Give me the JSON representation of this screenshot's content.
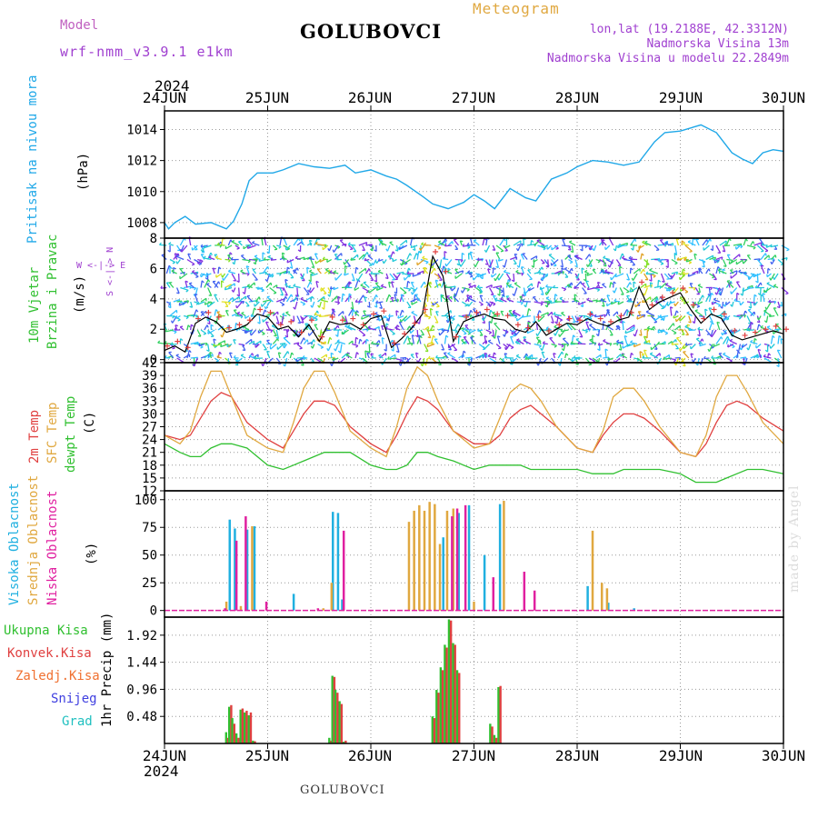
{
  "header": {
    "model_label": "Model",
    "model": "wrf-nmm_v3.9.1 e1km",
    "station": "GOLUBOVCI",
    "subtitle": "Meteogram",
    "lonlat": "lon,lat (19.2188E, 42.3312N)",
    "elevation": "Nadmorska Visina 13m",
    "elevation_model": "Nadmorska Visina u modelu 22.2849m"
  },
  "year": "2024",
  "days": [
    "24JUN",
    "25JUN",
    "26JUN",
    "27JUN",
    "28JUN",
    "29JUN",
    "30JUN"
  ],
  "footer_station": "GOLUBOVCI",
  "credit": "made by Angel",
  "colors": {
    "pressure": "#20a8e8",
    "wind_label": "#30c030",
    "temp": "#e04040",
    "sfc": "#e0a840",
    "dew": "#30c030",
    "high": "#20b0e0",
    "mid": "#e0a840",
    "low": "#e020a0"
  },
  "chart_data": [
    {
      "type": "line",
      "panel": "pressure",
      "ylabel_lines": [
        "Pritisak na nivou mora",
        "(hPa)"
      ],
      "ylim": [
        1007,
        1015.2
      ],
      "yticks": [
        "1008",
        "1010",
        "1012",
        "1014"
      ],
      "series": [
        {
          "name": "Pritisak na nivou mora",
          "color": "#20a8e8",
          "x": [
            0,
            0.04,
            0.1,
            0.2,
            0.3,
            0.45,
            0.6,
            0.67,
            0.75,
            0.82,
            0.9,
            0.97,
            1.05,
            1.15,
            1.3,
            1.45,
            1.6,
            1.75,
            1.85,
            2.0,
            2.15,
            2.25,
            2.35,
            2.5,
            2.6,
            2.75,
            2.9,
            3.0,
            3.1,
            3.2,
            3.35,
            3.5,
            3.6,
            3.75,
            3.9,
            4.0,
            4.15,
            4.3,
            4.45,
            4.6,
            4.75,
            4.85,
            5.0,
            5.1,
            5.2,
            5.35,
            5.5,
            5.6,
            5.7,
            5.8,
            5.9,
            6.0
          ],
          "y": [
            1008.0,
            1007.6,
            1008.0,
            1008.4,
            1007.9,
            1008.0,
            1007.6,
            1008.1,
            1009.2,
            1010.7,
            1011.2,
            1011.2,
            1011.2,
            1011.4,
            1011.8,
            1011.6,
            1011.5,
            1011.7,
            1011.2,
            1011.4,
            1011.0,
            1010.8,
            1010.4,
            1009.7,
            1009.2,
            1008.9,
            1009.3,
            1009.8,
            1009.4,
            1008.9,
            1010.2,
            1009.6,
            1009.4,
            1010.8,
            1011.2,
            1011.6,
            1012.0,
            1011.9,
            1011.7,
            1011.9,
            1013.2,
            1013.8,
            1013.9,
            1014.1,
            1014.3,
            1013.8,
            1012.5,
            1012.1,
            1011.8,
            1012.5,
            1012.7,
            1012.6
          ]
        }
      ]
    },
    {
      "type": "line",
      "panel": "wind",
      "ylabel_lines": [
        "10m Vjetar",
        "Brzina i Pravac",
        "(m/s)"
      ],
      "compass": "W <-|-> E",
      "compass_ns": "S <-|-> N",
      "ylim": [
        -0.2,
        8
      ],
      "yticks": [
        "0",
        "2",
        "4",
        "6",
        "8"
      ],
      "series": [
        {
          "name": "10m Vjetar",
          "color": "#000000",
          "x": [
            0,
            0.1,
            0.2,
            0.3,
            0.4,
            0.5,
            0.6,
            0.7,
            0.8,
            0.9,
            1.0,
            1.1,
            1.2,
            1.3,
            1.4,
            1.5,
            1.6,
            1.7,
            1.8,
            1.9,
            2.0,
            2.1,
            2.2,
            2.3,
            2.4,
            2.5,
            2.6,
            2.7,
            2.8,
            2.9,
            3.0,
            3.1,
            3.2,
            3.3,
            3.4,
            3.5,
            3.6,
            3.7,
            3.8,
            3.9,
            4.0,
            4.1,
            4.2,
            4.3,
            4.4,
            4.5,
            4.6,
            4.7,
            4.8,
            4.9,
            5.0,
            5.1,
            5.2,
            5.3,
            5.4,
            5.5,
            5.6,
            5.7,
            5.8,
            5.9,
            6.0
          ],
          "y": [
            0.6,
            0.9,
            0.5,
            2.4,
            2.8,
            2.5,
            1.8,
            2.0,
            2.3,
            3.0,
            2.8,
            2.0,
            2.2,
            1.5,
            2.3,
            1.2,
            2.5,
            2.3,
            2.4,
            2.0,
            2.7,
            2.9,
            0.8,
            1.4,
            2.1,
            3.0,
            6.8,
            5.5,
            1.2,
            2.5,
            2.8,
            3.0,
            2.7,
            2.6,
            2.0,
            1.8,
            2.5,
            1.6,
            2.0,
            2.4,
            2.3,
            2.7,
            2.4,
            2.2,
            2.6,
            2.8,
            4.8,
            3.3,
            3.8,
            4.1,
            4.4,
            3.3,
            2.4,
            3.0,
            2.7,
            1.6,
            1.3,
            1.5,
            1.7,
            1.9,
            1.7
          ]
        }
      ]
    },
    {
      "type": "line",
      "panel": "temperature",
      "ylabel_lines": [
        "2m Temp",
        "SFC Temp",
        "dewpt Temp",
        "(C)"
      ],
      "ylim": [
        12,
        42
      ],
      "yticks": [
        "12",
        "15",
        "18",
        "21",
        "24",
        "27",
        "30",
        "33",
        "36",
        "39",
        "42"
      ],
      "x": [
        0,
        0.15,
        0.25,
        0.35,
        0.45,
        0.55,
        0.65,
        0.8,
        1.0,
        1.15,
        1.25,
        1.35,
        1.45,
        1.55,
        1.65,
        1.8,
        2.0,
        2.15,
        2.25,
        2.35,
        2.45,
        2.55,
        2.65,
        2.8,
        3.0,
        3.15,
        3.25,
        3.35,
        3.45,
        3.55,
        3.65,
        3.8,
        4.0,
        4.15,
        4.25,
        4.35,
        4.45,
        4.55,
        4.65,
        4.8,
        5.0,
        5.15,
        5.25,
        5.35,
        5.45,
        5.55,
        5.65,
        5.8,
        6.0
      ],
      "series": [
        {
          "name": "2m Temp",
          "color": "#e04040",
          "values": [
            25,
            24,
            25,
            29,
            33,
            35,
            34,
            28,
            24,
            22,
            26,
            30,
            33,
            33,
            32,
            27,
            23,
            21,
            25,
            30,
            34,
            33,
            31,
            26,
            23,
            23,
            25,
            29,
            31,
            32,
            30,
            27,
            22,
            21,
            25,
            28,
            30,
            30,
            29,
            26,
            21,
            20,
            23,
            28,
            32,
            33,
            32,
            29,
            26
          ]
        },
        {
          "name": "SFC Temp",
          "color": "#e0a840",
          "values": [
            25,
            23,
            26,
            34,
            40,
            40,
            34,
            25,
            22,
            21,
            28,
            36,
            40,
            40,
            35,
            26,
            22,
            20,
            27,
            36,
            41,
            39,
            33,
            26,
            22,
            23,
            29,
            35,
            37,
            36,
            33,
            27,
            22,
            21,
            26,
            34,
            36,
            36,
            33,
            27,
            21,
            20,
            25,
            34,
            39,
            39,
            35,
            28,
            23
          ]
        },
        {
          "name": "dewpt Temp",
          "color": "#30c030",
          "values": [
            23,
            21,
            20,
            20,
            22,
            23,
            23,
            22,
            18,
            17,
            18,
            19,
            20,
            21,
            21,
            21,
            18,
            17,
            17,
            18,
            21,
            21,
            20,
            19,
            17,
            18,
            18,
            18,
            18,
            17,
            17,
            17,
            17,
            16,
            16,
            16,
            17,
            17,
            17,
            17,
            16,
            14,
            14,
            14,
            15,
            16,
            17,
            17,
            16
          ]
        }
      ]
    },
    {
      "type": "bar",
      "panel": "cloud",
      "ylabel_lines": [
        "Visoka Oblacnost",
        "Srednja Oblacnost",
        "Niska Oblacnost",
        "(%)"
      ],
      "ylim": [
        -6,
        108
      ],
      "yticks": [
        "0",
        "25",
        "50",
        "75",
        "100"
      ],
      "series": [
        {
          "name": "Visoka Oblacnost",
          "color": "#20b0e0",
          "x": [
            0.63,
            0.68,
            0.8,
            0.87,
            1.25,
            1.63,
            1.68,
            1.72,
            2.7,
            2.85,
            2.95,
            3.1,
            3.25,
            4.1,
            4.3,
            4.55
          ],
          "values": [
            82,
            74,
            73,
            76,
            15,
            89,
            88,
            10,
            66,
            88,
            95,
            50,
            96,
            22,
            7,
            2
          ]
        },
        {
          "name": "Srednja Oblacnost",
          "color": "#e0a840",
          "x": [
            0.58,
            0.72,
            0.83,
            1.52,
            1.6,
            2.35,
            2.4,
            2.45,
            2.5,
            2.55,
            2.6,
            2.65,
            2.72,
            2.78,
            2.98,
            3.27,
            4.13,
            4.22,
            4.27
          ],
          "values": [
            8,
            4,
            76,
            2,
            25,
            80,
            90,
            95,
            90,
            98,
            96,
            60,
            90,
            92,
            8,
            99,
            72,
            25,
            20
          ]
        },
        {
          "name": "Niska Oblacnost",
          "color": "#e020a0",
          "x": [
            0.55,
            0.66,
            0.75,
            0.95,
            1.45,
            1.7,
            2.75,
            2.8,
            2.88,
            3.15,
            3.45,
            3.55
          ],
          "values": [
            2,
            63,
            85,
            8,
            2,
            72,
            85,
            92,
            95,
            30,
            35,
            18
          ]
        }
      ]
    },
    {
      "type": "bar",
      "panel": "precipitation",
      "ylabel_lines": [
        "1hr Precip (mm)"
      ],
      "legend": [
        "Ukupna Kisa",
        "Konvek.Kisa",
        "Zaledj.Kisa",
        "Snijeg",
        "Grad"
      ],
      "legend_colors": [
        "#30c030",
        "#e04040",
        "#f07030",
        "#4040e0",
        "#20c0c0"
      ],
      "ylim": [
        0,
        2.24
      ],
      "yticks": [
        "0.48",
        "0.96",
        "1.44",
        "1.92"
      ],
      "x": [
        0.6,
        0.63,
        0.66,
        0.7,
        0.74,
        0.78,
        0.82,
        0.86,
        1.6,
        1.63,
        1.66,
        1.7,
        1.74,
        2.6,
        2.64,
        2.68,
        2.72,
        2.76,
        2.8,
        2.84,
        3.16,
        3.2,
        3.24
      ],
      "series": [
        {
          "name": "Ukupna Kisa",
          "color": "#30c030",
          "values": [
            0.2,
            0.65,
            0.45,
            0.18,
            0.6,
            0.55,
            0.5,
            0.05,
            0.1,
            1.2,
            0.95,
            0.75,
            0.03,
            0.48,
            0.95,
            1.35,
            1.75,
            2.2,
            1.78,
            1.3,
            0.35,
            0.15,
            1.0
          ]
        },
        {
          "name": "Konvek.Kisa",
          "color": "#e04040",
          "values": [
            0.1,
            0.68,
            0.35,
            0.1,
            0.62,
            0.58,
            0.55,
            0.04,
            0.05,
            1.18,
            0.9,
            0.7,
            0.05,
            0.45,
            0.9,
            1.3,
            1.7,
            2.18,
            1.75,
            1.25,
            0.3,
            0.1,
            1.02
          ]
        }
      ]
    }
  ]
}
